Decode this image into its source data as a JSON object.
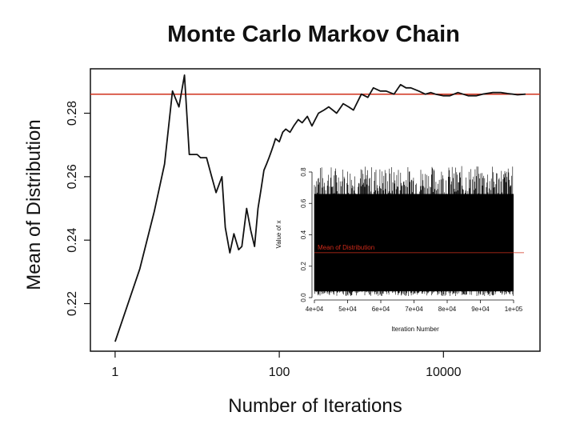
{
  "chart_data": [
    {
      "type": "line",
      "title": "Monte Carlo Markov Chain",
      "xlabel": "Number of Iterations",
      "ylabel": "Mean of Distribution",
      "x_scale": "log",
      "xlim": [
        0.5,
        150000
      ],
      "ylim": [
        0.205,
        0.294
      ],
      "x_ticks": [
        {
          "value": 1,
          "label": "1"
        },
        {
          "value": 100,
          "label": "100"
        },
        {
          "value": 10000,
          "label": "10000"
        }
      ],
      "y_ticks": [
        {
          "value": 0.22,
          "label": "0.22"
        },
        {
          "value": 0.24,
          "label": "0.24"
        },
        {
          "value": 0.26,
          "label": "0.26"
        },
        {
          "value": 0.28,
          "label": "0.28"
        }
      ],
      "reference_line": {
        "y": 0.286,
        "color": "#d0311c"
      },
      "series": [
        {
          "color": "#111111",
          "x": [
            1,
            2,
            3,
            4,
            5,
            6,
            7,
            8,
            9,
            10,
            11,
            13,
            15,
            17,
            20,
            22,
            25,
            28,
            32,
            35,
            40,
            45,
            50,
            55,
            60,
            65,
            70,
            75,
            80,
            85,
            90,
            100,
            110,
            120,
            135,
            150,
            170,
            190,
            220,
            250,
            300,
            350,
            400,
            500,
            600,
            700,
            800,
            1000,
            1200,
            1400,
            1700,
            2000,
            2500,
            3000,
            3500,
            4000,
            5000,
            6000,
            7000,
            8000,
            10000,
            12000,
            15000,
            20000,
            25000,
            30000,
            40000,
            50000,
            60000,
            70000,
            80000,
            100000
          ],
          "y": [
            0.208,
            0.231,
            0.249,
            0.264,
            0.287,
            0.282,
            0.292,
            0.267,
            0.267,
            0.267,
            0.266,
            0.266,
            0.26,
            0.255,
            0.26,
            0.244,
            0.236,
            0.242,
            0.237,
            0.238,
            0.25,
            0.243,
            0.238,
            0.25,
            0.256,
            0.262,
            0.264,
            0.266,
            0.268,
            0.27,
            0.272,
            0.271,
            0.274,
            0.275,
            0.274,
            0.276,
            0.278,
            0.277,
            0.279,
            0.276,
            0.28,
            0.281,
            0.282,
            0.28,
            0.283,
            0.282,
            0.281,
            0.286,
            0.285,
            0.288,
            0.287,
            0.287,
            0.286,
            0.289,
            0.288,
            0.288,
            0.287,
            0.286,
            0.2865,
            0.286,
            0.2855,
            0.2855,
            0.2865,
            0.2855,
            0.2855,
            0.286,
            0.2865,
            0.2865,
            0.2862,
            0.286,
            0.2858,
            0.286
          ]
        }
      ]
    },
    {
      "type": "line",
      "title": "",
      "xlabel": "Iteration Number",
      "ylabel": "Value of x",
      "xlim": [
        40000,
        100000
      ],
      "ylim": [
        0,
        0.8
      ],
      "x_ticks": [
        {
          "value": 40000,
          "label": "4e+04"
        },
        {
          "value": 50000,
          "label": "5e+04"
        },
        {
          "value": 60000,
          "label": "6e+04"
        },
        {
          "value": 70000,
          "label": "7e+04"
        },
        {
          "value": 80000,
          "label": "8e+04"
        },
        {
          "value": 90000,
          "label": "9e+04"
        },
        {
          "value": 100000,
          "label": "1e+05"
        }
      ],
      "y_ticks": [
        {
          "value": 0.0,
          "label": "0.0"
        },
        {
          "value": 0.2,
          "label": "0.2"
        },
        {
          "value": 0.4,
          "label": "0.4"
        },
        {
          "value": 0.6,
          "label": "0.6"
        },
        {
          "value": 0.8,
          "label": "0.8"
        }
      ],
      "typical_range": [
        0.04,
        0.66
      ],
      "reference_line": {
        "y": 0.286,
        "color": "#d0311c",
        "label": "Mean of Distribution"
      },
      "series_color": "#000000"
    }
  ]
}
